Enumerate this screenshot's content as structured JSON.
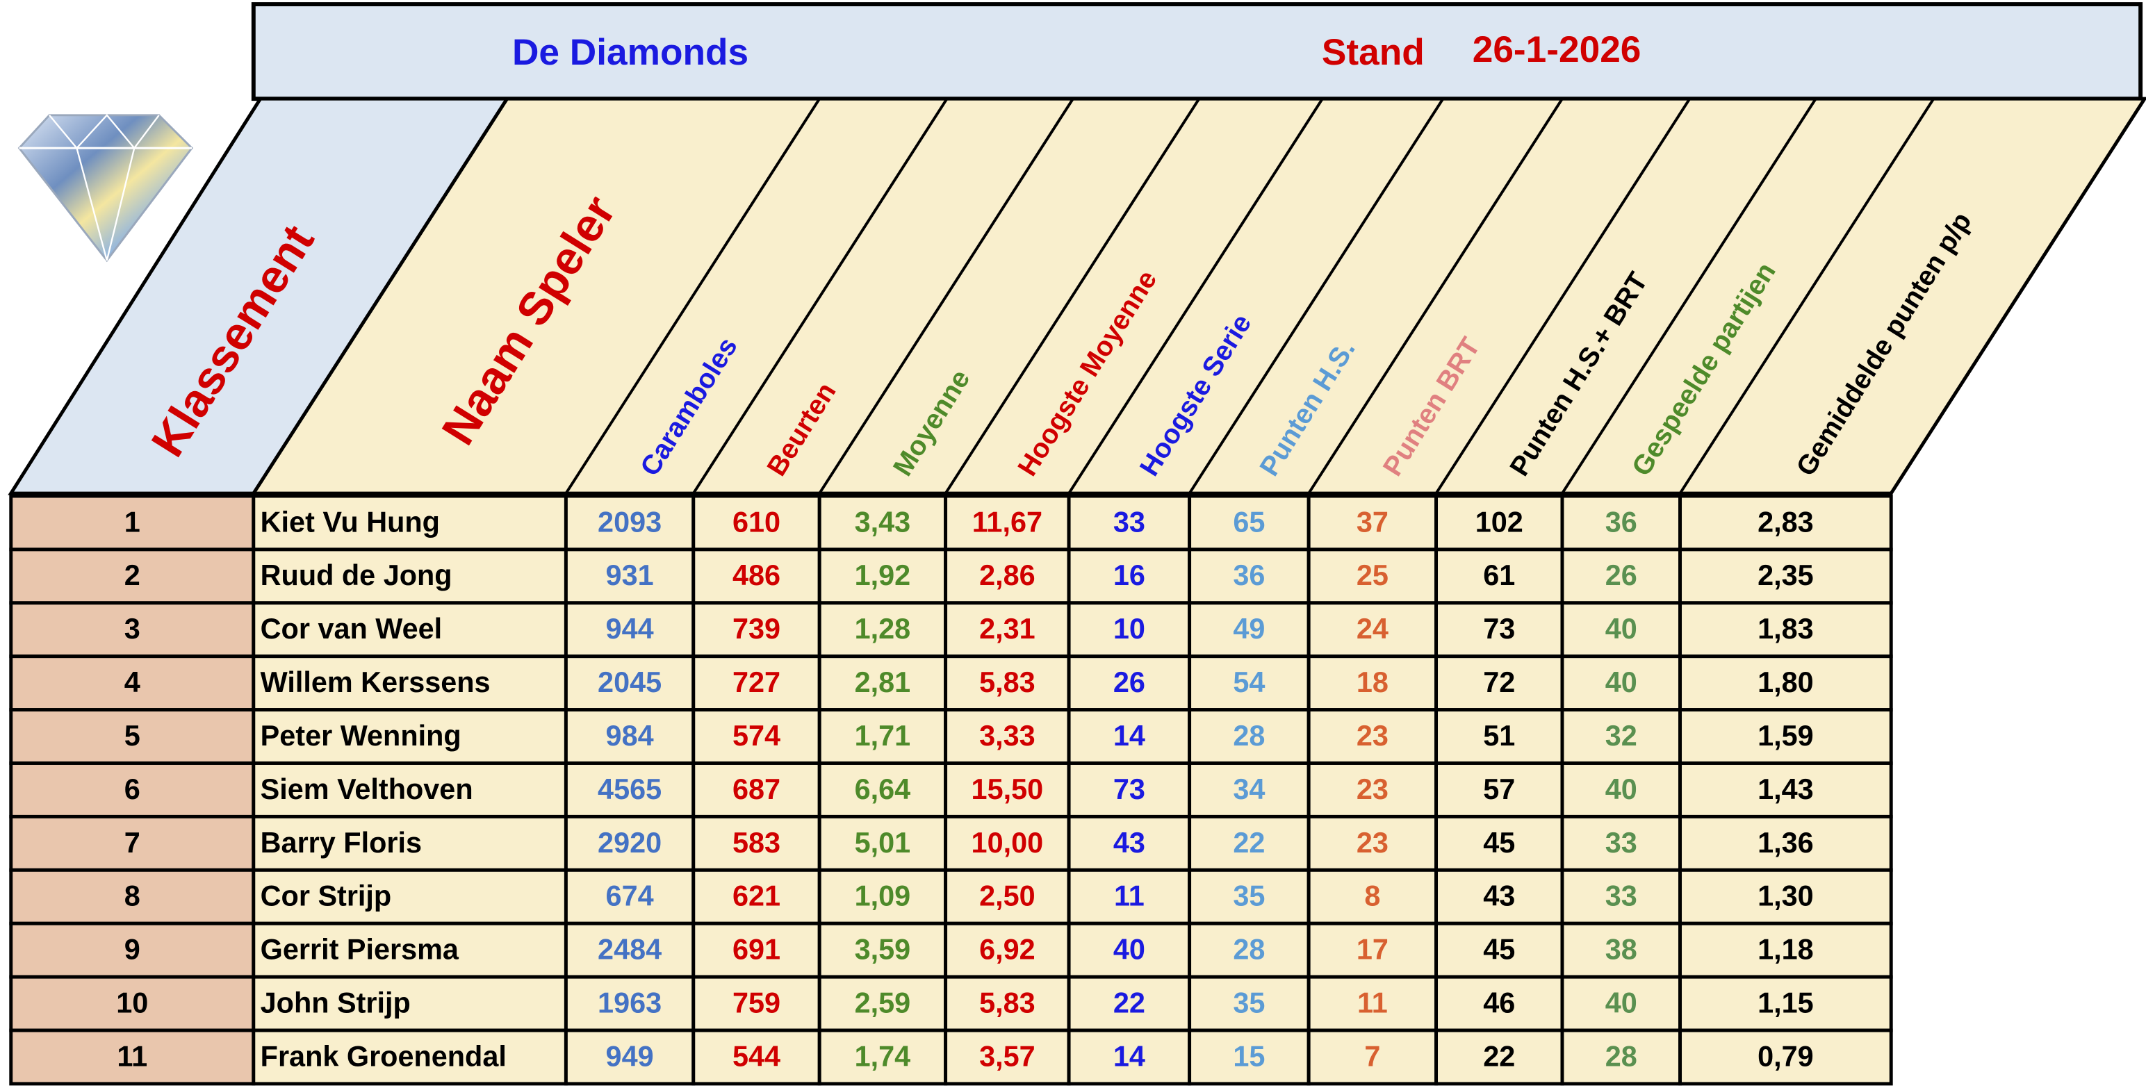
{
  "header": {
    "title": "De Diamonds",
    "stand": "Stand",
    "date": "26-1-2026"
  },
  "table": {
    "columns": [
      "Klassement",
      "Naam Speler",
      "Caramboles",
      "Beurten",
      "Moyenne",
      "Hoogste Moyenne",
      "Hoogste Serie",
      "Punten H.S.",
      "Punten BRT",
      "Punten H.S.+ BRT",
      "Gespeelde partijen",
      "Gemiddelde punten p/p"
    ],
    "rows": [
      [
        "1",
        "Kiet Vu Hung",
        "2093",
        "610",
        "3,43",
        "11,67",
        "33",
        "65",
        "37",
        "102",
        "36",
        "2,83"
      ],
      [
        "2",
        "Ruud de Jong",
        "931",
        "486",
        "1,92",
        "2,86",
        "16",
        "36",
        "25",
        "61",
        "26",
        "2,35"
      ],
      [
        "3",
        "Cor van Weel",
        "944",
        "739",
        "1,28",
        "2,31",
        "10",
        "49",
        "24",
        "73",
        "40",
        "1,83"
      ],
      [
        "4",
        "Willem Kerssens",
        "2045",
        "727",
        "2,81",
        "5,83",
        "26",
        "54",
        "18",
        "72",
        "40",
        "1,80"
      ],
      [
        "5",
        "Peter Wenning",
        "984",
        "574",
        "1,71",
        "3,33",
        "14",
        "28",
        "23",
        "51",
        "32",
        "1,59"
      ],
      [
        "6",
        "Siem Velthoven",
        "4565",
        "687",
        "6,64",
        "15,50",
        "73",
        "34",
        "23",
        "57",
        "40",
        "1,43"
      ],
      [
        "7",
        "Barry Floris",
        "2920",
        "583",
        "5,01",
        "10,00",
        "43",
        "22",
        "23",
        "45",
        "33",
        "1,36"
      ],
      [
        "8",
        "Cor Strijp",
        "674",
        "621",
        "1,09",
        "2,50",
        "11",
        "35",
        "8",
        "43",
        "33",
        "1,30"
      ],
      [
        "9",
        "Gerrit Piersma",
        "2484",
        "691",
        "3,59",
        "6,92",
        "40",
        "28",
        "17",
        "45",
        "38",
        "1,18"
      ],
      [
        "10",
        "John Strijp",
        "1963",
        "759",
        "2,59",
        "5,83",
        "22",
        "35",
        "11",
        "46",
        "40",
        "1,15"
      ],
      [
        "11",
        "Frank Groenendal",
        "949",
        "544",
        "1,74",
        "3,57",
        "14",
        "15",
        "7",
        "22",
        "28",
        "0,79"
      ]
    ]
  }
}
